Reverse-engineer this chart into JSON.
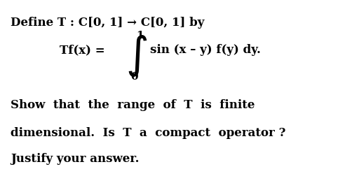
{
  "bg_color": "#ffffff",
  "text_color": "#000000",
  "line1": "Define T : C[0, 1] → C[0, 1] by",
  "integral_label_Tf": "Tf(x) = ",
  "integral_upper": "1",
  "integral_lower": "0",
  "integral_body": "sin (x – y) f(y) dy.",
  "line_show": "Show  that  the  range  of  T  is  finite",
  "line_dim": "dimensional.  Is  T  a  compact  operator ?",
  "line_just": "Justify your answer.",
  "figsize": [
    4.92,
    2.53
  ],
  "dpi": 100
}
